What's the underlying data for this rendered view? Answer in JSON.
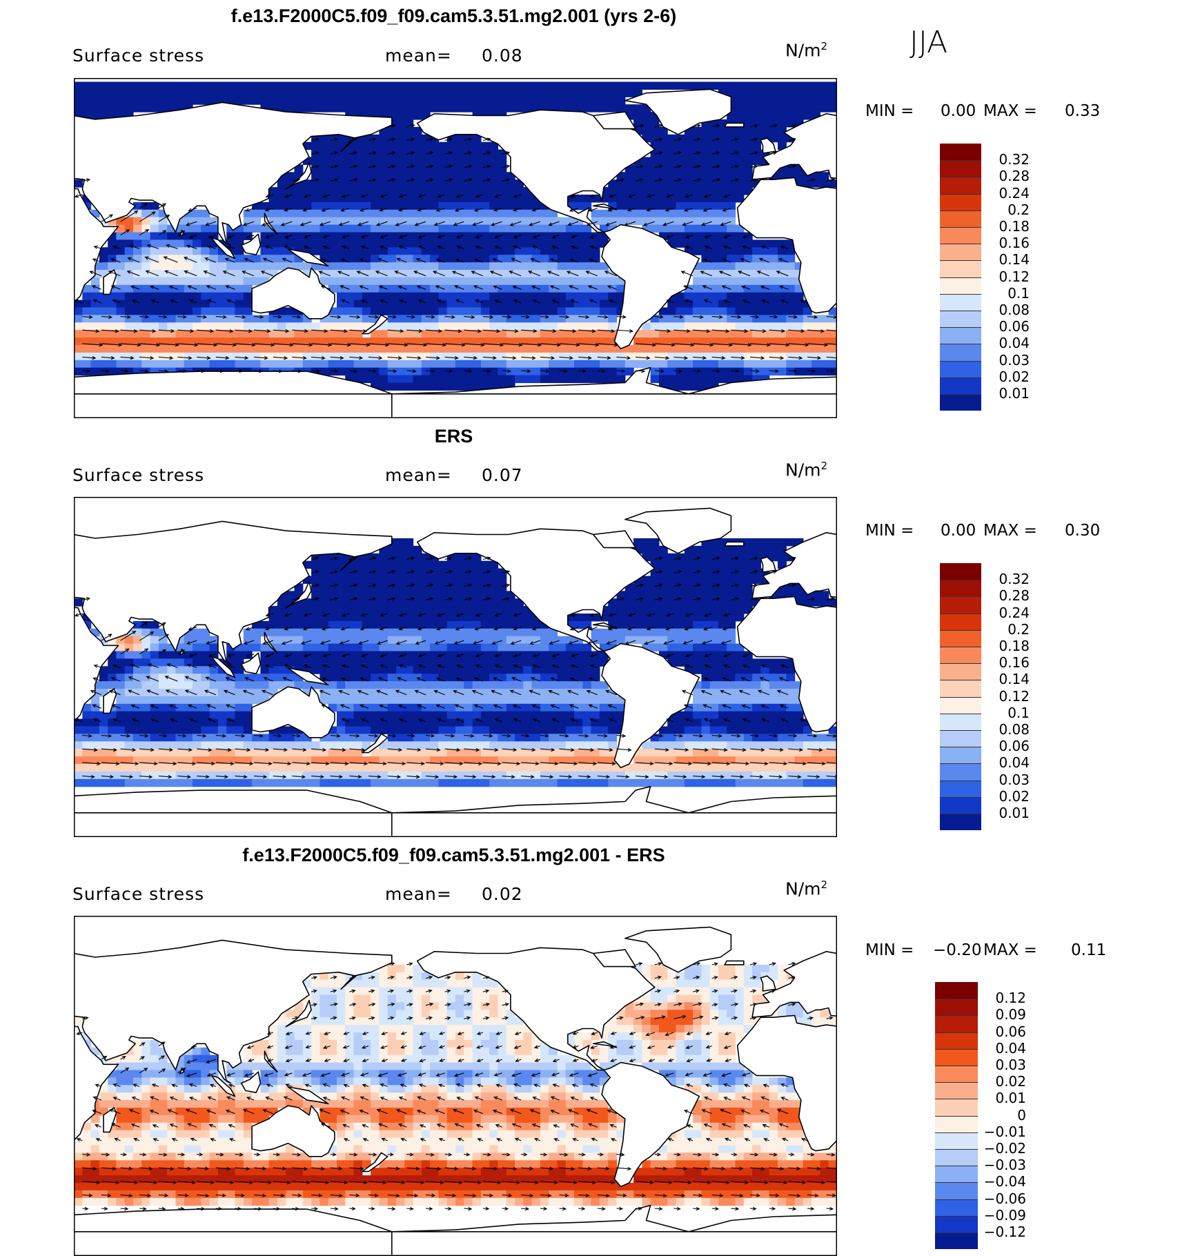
{
  "season": "JJA",
  "panels": [
    {
      "title": "f.e13.F2000C5.f09_f09.cam5.3.51.mg2.001 (yrs 2-6)",
      "variable": "Surface stress",
      "mean_label": "mean=",
      "mean_value": "0.08",
      "units_base": "N/m",
      "units_exp": "2",
      "min_label": "MIN =",
      "min_value": "0.00",
      "max_label": "MAX =",
      "max_value": "0.33",
      "colorbar": [
        "0.32",
        "0.28",
        "0.24",
        "0.2",
        "0.18",
        "0.16",
        "0.14",
        "0.12",
        "0.1",
        "0.08",
        "0.06",
        "0.04",
        "0.03",
        "0.02",
        "0.01"
      ],
      "kind": "model"
    },
    {
      "title": "ERS",
      "variable": "Surface stress",
      "mean_label": "mean=",
      "mean_value": "0.07",
      "units_base": "N/m",
      "units_exp": "2",
      "min_label": "MIN =",
      "min_value": "0.00",
      "max_label": "MAX =",
      "max_value": "0.30",
      "colorbar": [
        "0.32",
        "0.28",
        "0.24",
        "0.2",
        "0.18",
        "0.16",
        "0.14",
        "0.12",
        "0.1",
        "0.08",
        "0.06",
        "0.04",
        "0.03",
        "0.02",
        "0.01"
      ],
      "kind": "obs"
    },
    {
      "title": "f.e13.F2000C5.f09_f09.cam5.3.51.mg2.001 - ERS",
      "variable": "Surface stress",
      "mean_label": "mean=",
      "mean_value": "0.02",
      "units_base": "N/m",
      "units_exp": "2",
      "min_label": "MIN =",
      "min_value": "−0.20",
      "max_label": "MAX =",
      "max_value": "0.11",
      "colorbar": [
        "0.12",
        "0.09",
        "0.06",
        "0.04",
        "0.03",
        "0.02",
        "0.01",
        "0",
        "−0.01",
        "−0.02",
        "−0.03",
        "−0.04",
        "−0.06",
        "−0.09",
        "−0.12"
      ],
      "kind": "diff"
    }
  ],
  "colors": {
    "abs_scale": [
      "#8b0000",
      "#b51d08",
      "#d8360a",
      "#f0622c",
      "#f9895b",
      "#fbb08c",
      "#fdd3b9",
      "#fdf0e4",
      "#d6e7fb",
      "#b5cdf8",
      "#8cb0f4",
      "#5a88ee",
      "#2f62e4",
      "#1338c8",
      "#061c90"
    ],
    "diff_scale": [
      "#8b0000",
      "#b51d08",
      "#d8360a",
      "#f2581c",
      "#f98a5c",
      "#fbae8e",
      "#fdd0b6",
      "#fdf0e4",
      "#d6e7fb",
      "#b5cdf8",
      "#8cb0f4",
      "#5a88ee",
      "#2f62e4",
      "#1338c8",
      "#061c90"
    ],
    "land": "#ffffff",
    "coast": "#000000"
  }
}
